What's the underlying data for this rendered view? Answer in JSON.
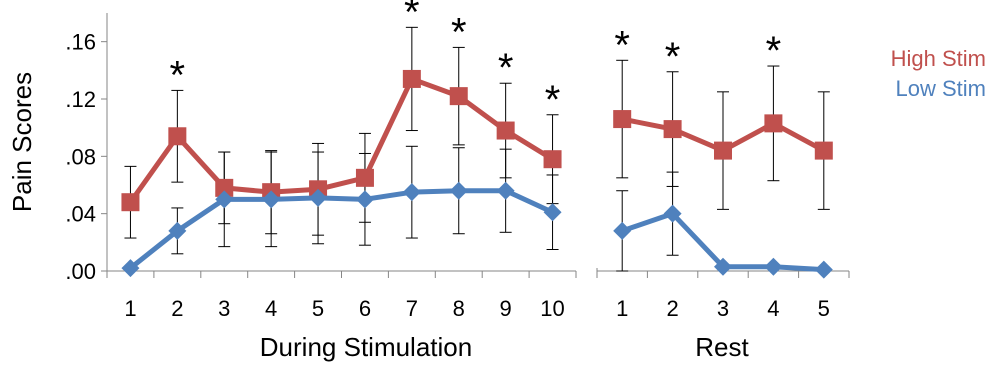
{
  "chart_data": {
    "type": "line",
    "ylabel": "Pain Scores",
    "ylim": [
      0,
      0.18
    ],
    "y_ticks": [
      ".00",
      ".04",
      ".08",
      ".12",
      ".16"
    ],
    "y_tick_values": [
      0,
      0.04,
      0.08,
      0.12,
      0.16
    ],
    "grid": false,
    "legend_position": "top-right",
    "significance_marker": "*",
    "colors": {
      "high": "#c0504d",
      "low": "#4f81bd",
      "error": "#000000",
      "axis": "#868686"
    },
    "panels": [
      {
        "xlabel": "During Stimulation",
        "categories": [
          "1",
          "2",
          "3",
          "4",
          "5",
          "6",
          "7",
          "8",
          "9",
          "10"
        ],
        "series": [
          {
            "name": "High Stim",
            "marker": "square",
            "values": [
              0.048,
              0.094,
              0.058,
              0.055,
              0.057,
              0.065,
              0.134,
              0.122,
              0.098,
              0.078
            ],
            "error": [
              0.025,
              0.032,
              0.025,
              0.029,
              0.032,
              0.031,
              0.036,
              0.034,
              0.033,
              0.031
            ]
          },
          {
            "name": "Low Stim",
            "marker": "diamond",
            "values": [
              0.002,
              0.028,
              0.05,
              0.05,
              0.051,
              0.05,
              0.055,
              0.056,
              0.056,
              0.041
            ],
            "error": [
              0,
              0.016,
              0.033,
              0.033,
              0.032,
              0.032,
              0.032,
              0.03,
              0.029,
              0.026
            ]
          }
        ],
        "significant": [
          false,
          true,
          false,
          false,
          false,
          false,
          true,
          true,
          true,
          true
        ]
      },
      {
        "xlabel": "Rest",
        "categories": [
          "1",
          "2",
          "3",
          "4",
          "5"
        ],
        "series": [
          {
            "name": "High Stim",
            "marker": "square",
            "values": [
              0.106,
              0.099,
              0.084,
              0.103,
              0.084
            ],
            "error": [
              0.041,
              0.04,
              0.041,
              0.04,
              0.041
            ]
          },
          {
            "name": "Low Stim",
            "marker": "diamond",
            "values": [
              0.028,
              0.04,
              0.003,
              0.003,
              0.001
            ],
            "error": [
              0.028,
              0.029,
              0,
              0,
              0
            ]
          }
        ],
        "significant": [
          true,
          true,
          false,
          true,
          false
        ]
      }
    ]
  }
}
